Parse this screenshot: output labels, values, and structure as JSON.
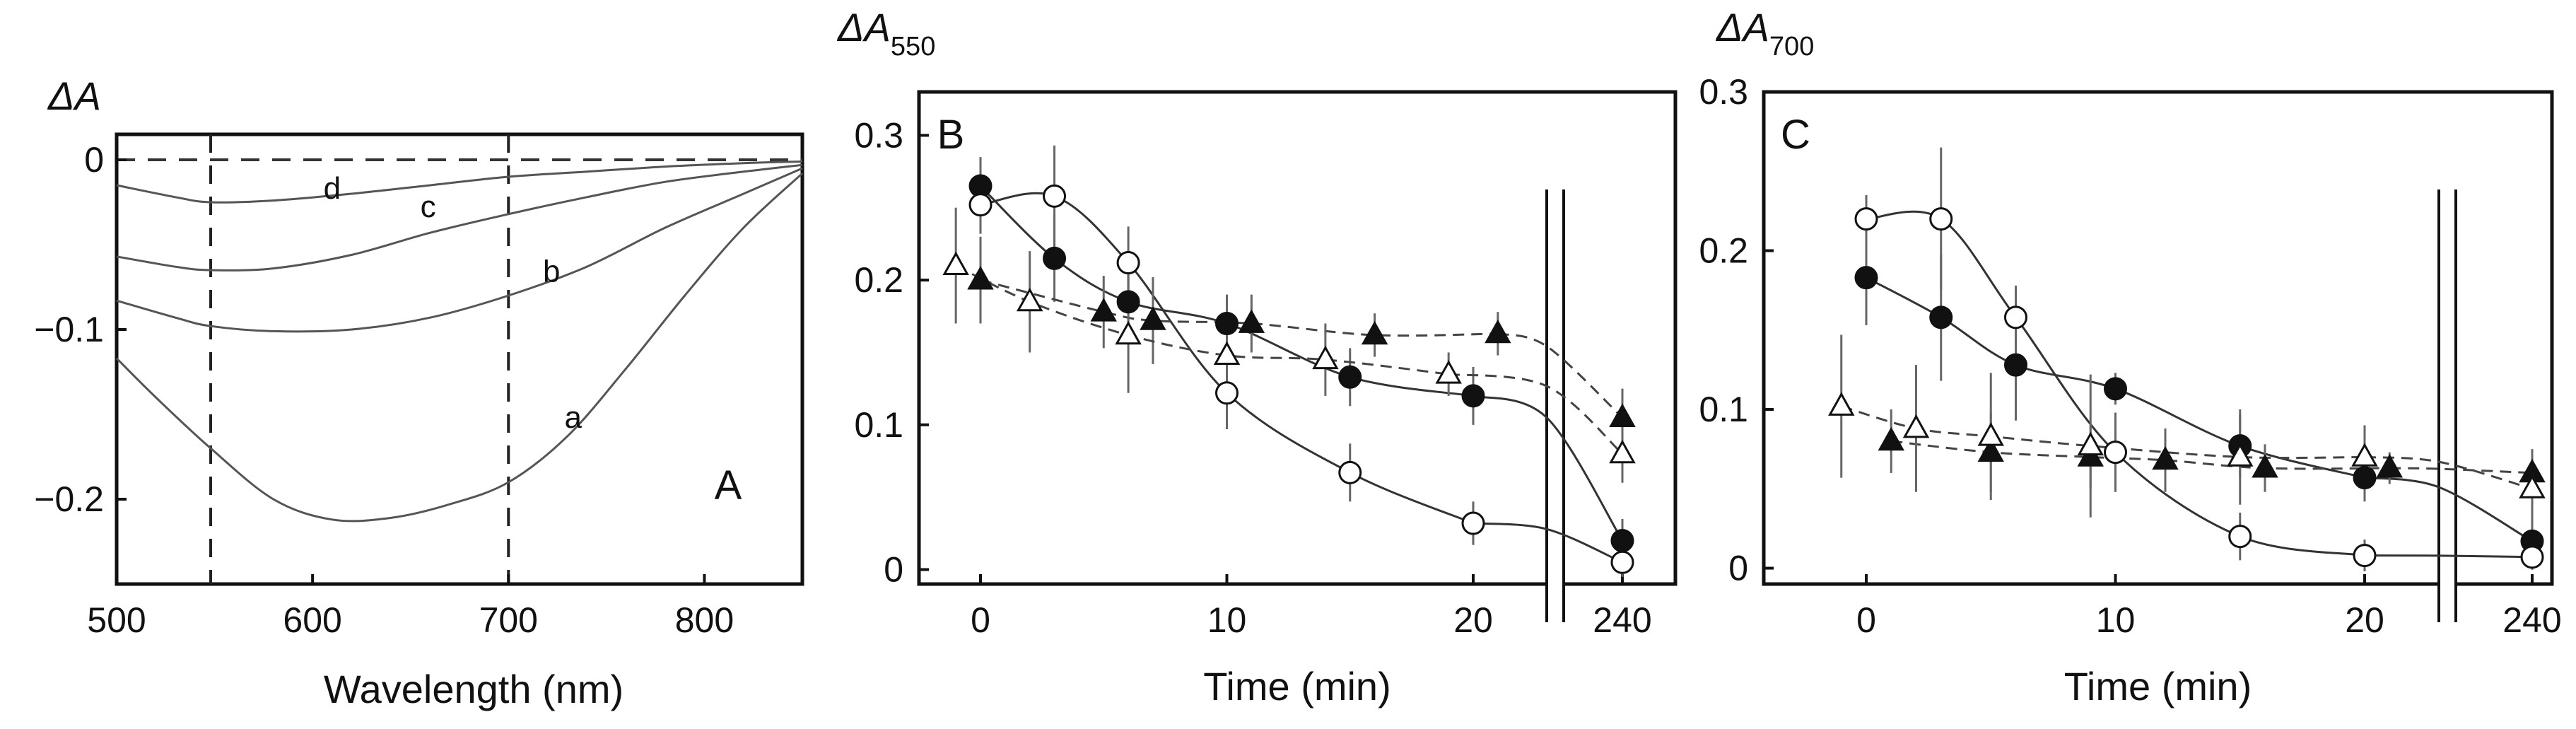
{
  "chart_data": [
    {
      "panel": "A",
      "type": "line",
      "panel_label": "A",
      "ylabel": "ΔA",
      "xlabel": "Wavelength (nm)",
      "xlim": [
        500,
        850
      ],
      "ylim": [
        -0.25,
        0.015
      ],
      "xticks": [
        500,
        600,
        700,
        800
      ],
      "xtick_labels": [
        "500",
        "600",
        "700",
        "800"
      ],
      "yticks": [
        0,
        -0.1,
        -0.2
      ],
      "ytick_labels": [
        "0",
        "−0.1",
        "−0.2"
      ],
      "reference_lines": {
        "horizontal_y": 0,
        "vertical_x": [
          548,
          700
        ]
      },
      "series": [
        {
          "name": "a",
          "x": [
            500,
            520,
            548,
            580,
            610,
            640,
            670,
            700,
            730,
            760,
            790,
            820,
            850
          ],
          "y": [
            -0.117,
            -0.14,
            -0.17,
            -0.2,
            -0.212,
            -0.211,
            -0.203,
            -0.19,
            -0.163,
            -0.123,
            -0.08,
            -0.04,
            -0.008
          ]
        },
        {
          "name": "b",
          "x": [
            500,
            530,
            548,
            580,
            620,
            660,
            700,
            740,
            780,
            820,
            850
          ],
          "y": [
            -0.083,
            -0.093,
            -0.098,
            -0.101,
            -0.1,
            -0.093,
            -0.08,
            -0.063,
            -0.04,
            -0.02,
            -0.005
          ]
        },
        {
          "name": "c",
          "x": [
            500,
            530,
            548,
            580,
            620,
            660,
            700,
            740,
            780,
            820,
            850
          ],
          "y": [
            -0.057,
            -0.063,
            -0.065,
            -0.064,
            -0.056,
            -0.043,
            -0.032,
            -0.022,
            -0.013,
            -0.007,
            -0.003
          ]
        },
        {
          "name": "d",
          "x": [
            500,
            530,
            548,
            580,
            620,
            660,
            700,
            740,
            780,
            820,
            850
          ],
          "y": [
            -0.015,
            -0.022,
            -0.025,
            -0.024,
            -0.02,
            -0.015,
            -0.01,
            -0.007,
            -0.004,
            -0.002,
            -0.001
          ]
        }
      ]
    },
    {
      "panel": "B",
      "type": "scatter",
      "panel_label": "B",
      "ylabel": "ΔA",
      "ylabel_sub": "550",
      "xlabel": "Time (min)",
      "ylim": [
        -0.01,
        0.33
      ],
      "yticks": [
        0,
        0.1,
        0.2,
        0.3
      ],
      "ytick_labels": [
        "0",
        "0.1",
        "0.2",
        "0.3"
      ],
      "xticks": [
        0,
        10,
        20,
        240
      ],
      "xtick_labels": [
        "0",
        "10",
        "20",
        "240"
      ],
      "axis_break": "between 20 and 240 min",
      "series": [
        {
          "name": "filled circles",
          "marker": "circle-filled",
          "line": "solid",
          "x": [
            0,
            3,
            6,
            10,
            15,
            20,
            240
          ],
          "y": [
            0.265,
            0.215,
            0.185,
            0.17,
            0.133,
            0.12,
            0.02
          ],
          "err": [
            0.02,
            0.03,
            0.025,
            0.02,
            0.02,
            0.02,
            0.015
          ]
        },
        {
          "name": "open circles",
          "marker": "circle-open",
          "line": "solid",
          "x": [
            0,
            3,
            6,
            10,
            15,
            20,
            240
          ],
          "y": [
            0.252,
            0.258,
            0.212,
            0.122,
            0.067,
            0.032,
            0.005
          ],
          "err": [
            0.02,
            0.035,
            0.025,
            0.025,
            0.02,
            0.015,
            0.01
          ]
        },
        {
          "name": "filled triangles",
          "marker": "triangle-filled",
          "line": "dashed",
          "x": [
            0,
            5,
            7,
            11,
            16,
            21,
            240
          ],
          "y": [
            0.2,
            0.178,
            0.172,
            0.17,
            0.162,
            0.163,
            0.105
          ],
          "err": [
            0.03,
            0.025,
            0.03,
            0.02,
            0.015,
            0.015,
            0.02
          ]
        },
        {
          "name": "open triangles",
          "marker": "triangle-open",
          "line": "dashed",
          "x": [
            -1,
            2,
            6,
            10,
            14,
            19,
            240
          ],
          "y": [
            0.21,
            0.185,
            0.162,
            0.148,
            0.145,
            0.135,
            0.08
          ],
          "err": [
            0.04,
            0.035,
            0.04,
            0.03,
            0.025,
            0.015,
            0.02
          ]
        }
      ]
    },
    {
      "panel": "C",
      "type": "scatter",
      "panel_label": "C",
      "ylabel": "ΔA",
      "ylabel_sub": "700",
      "xlabel": "Time (min)",
      "ylim": [
        -0.01,
        0.3
      ],
      "yticks": [
        0,
        0.1,
        0.2,
        0.3
      ],
      "ytick_labels": [
        "0",
        "0.1",
        "0.2",
        "0.3"
      ],
      "xticks": [
        0,
        10,
        20,
        240
      ],
      "xtick_labels": [
        "0",
        "10",
        "20",
        "240"
      ],
      "axis_break": "between 20 and 240 min",
      "series": [
        {
          "name": "filled circles",
          "marker": "circle-filled",
          "line": "solid",
          "x": [
            0,
            3,
            6,
            10,
            15,
            20,
            240
          ],
          "y": [
            0.183,
            0.158,
            0.128,
            0.113,
            0.077,
            0.057,
            0.017
          ],
          "err": [
            0.03,
            0.04,
            0.035,
            0.01,
            0.02,
            0.015,
            0.015
          ]
        },
        {
          "name": "open circles",
          "marker": "circle-open",
          "line": "solid",
          "x": [
            0,
            3,
            6,
            10,
            15,
            20,
            240
          ],
          "y": [
            0.22,
            0.22,
            0.158,
            0.073,
            0.02,
            0.008,
            0.007
          ],
          "err": [
            0.015,
            0.045,
            0.02,
            0.025,
            0.015,
            0.01,
            0.008
          ]
        },
        {
          "name": "filled triangles",
          "marker": "triangle-filled",
          "line": "dashed",
          "x": [
            1,
            5,
            9,
            12,
            16,
            21,
            240
          ],
          "y": [
            0.08,
            0.073,
            0.07,
            0.068,
            0.063,
            0.063,
            0.06
          ],
          "err": [
            0.02,
            0.025,
            0.02,
            0.02,
            0.015,
            0.01,
            0.015
          ]
        },
        {
          "name": "open triangles",
          "marker": "triangle-open",
          "line": "dashed",
          "x": [
            -1,
            2,
            5,
            9,
            15,
            20,
            240
          ],
          "y": [
            0.102,
            0.088,
            0.083,
            0.077,
            0.07,
            0.07,
            0.05
          ],
          "err": [
            0.045,
            0.04,
            0.04,
            0.045,
            0.03,
            0.02,
            0.02
          ]
        }
      ]
    }
  ]
}
